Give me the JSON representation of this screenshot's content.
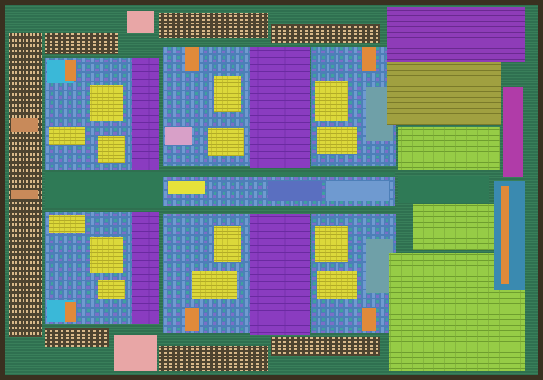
{
  "image": {
    "subject": "cpu-die-micrograph",
    "colors": {
      "substrate": "#2c6a4a",
      "frame": "#7a6a4a",
      "core_logic": "#5a86c0",
      "cache_purple": "#8a3cc0",
      "cache_magenta": "#b03ca8",
      "l3_green": "#9ad24a",
      "l3_olive": "#8aa23a",
      "yellow_block": "#e6e23a",
      "orange_block": "#e08a3a",
      "cyan_block": "#3ab8d8",
      "pink_pad": "#e8a6a6"
    },
    "regions": {
      "cores": 4,
      "l3_cache_blocks": 2,
      "io_pad_rows": 2
    }
  }
}
